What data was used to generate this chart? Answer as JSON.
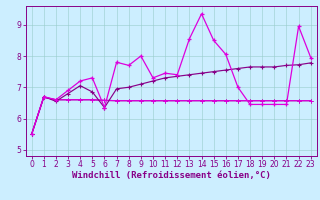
{
  "bg_color": "#cceeff",
  "line_color_bright": "#dd00dd",
  "line_color_dark": "#880088",
  "xlim": [
    -0.5,
    23.5
  ],
  "ylim": [
    4.8,
    9.6
  ],
  "yticks": [
    5,
    6,
    7,
    8,
    9
  ],
  "xticks": [
    0,
    1,
    2,
    3,
    4,
    5,
    6,
    7,
    8,
    9,
    10,
    11,
    12,
    13,
    14,
    15,
    16,
    17,
    18,
    19,
    20,
    21,
    22,
    23
  ],
  "xlabel": "Windchill (Refroidissement éolien,°C)",
  "series1_x": [
    0,
    1,
    2,
    3,
    4,
    5,
    6,
    7,
    8,
    9,
    10,
    11,
    12,
    13,
    14,
    15,
    16,
    17,
    18,
    19,
    20,
    21,
    22,
    23
  ],
  "series1_y": [
    5.5,
    6.7,
    6.6,
    6.9,
    7.2,
    7.3,
    6.35,
    7.8,
    7.7,
    8.0,
    7.3,
    7.45,
    7.4,
    8.55,
    9.35,
    8.5,
    8.05,
    7.0,
    6.45,
    6.45,
    6.45,
    6.45,
    8.95,
    7.95
  ],
  "series2_x": [
    0,
    1,
    2,
    3,
    4,
    5,
    6,
    7,
    8,
    9,
    10,
    11,
    12,
    13,
    14,
    15,
    16,
    17,
    18,
    19,
    20,
    21,
    22,
    23
  ],
  "series2_y": [
    5.5,
    6.7,
    6.55,
    6.8,
    7.05,
    6.85,
    6.35,
    6.95,
    7.0,
    7.1,
    7.2,
    7.3,
    7.35,
    7.4,
    7.45,
    7.5,
    7.55,
    7.6,
    7.65,
    7.65,
    7.65,
    7.7,
    7.72,
    7.78
  ],
  "series3_x": [
    0,
    1,
    2,
    3,
    4,
    5,
    6,
    7,
    8,
    9,
    10,
    11,
    12,
    13,
    14,
    15,
    16,
    17,
    18,
    19,
    20,
    21,
    22,
    23
  ],
  "series3_y": [
    5.5,
    6.68,
    6.6,
    6.6,
    6.6,
    6.6,
    6.58,
    6.57,
    6.57,
    6.57,
    6.57,
    6.57,
    6.57,
    6.57,
    6.57,
    6.57,
    6.57,
    6.57,
    6.57,
    6.57,
    6.57,
    6.57,
    6.57,
    6.57
  ],
  "series4_x": [
    0,
    1,
    2,
    3,
    4,
    5,
    6,
    7,
    8,
    9,
    10,
    11,
    12,
    13,
    14,
    15,
    16,
    17,
    18,
    19,
    20,
    21,
    22,
    23
  ],
  "series4_y": [
    5.5,
    6.68,
    6.6,
    6.6,
    6.6,
    6.6,
    6.58,
    6.57,
    6.57,
    6.57,
    6.57,
    6.57,
    6.57,
    6.57,
    6.57,
    6.57,
    6.57,
    6.57,
    6.57,
    6.57,
    6.57,
    6.57,
    6.57,
    6.57
  ],
  "grid_color": "#99cccc",
  "tick_fontsize": 5.5,
  "xlabel_fontsize": 6.5,
  "lw_main": 0.9,
  "lw_trend": 0.85,
  "marker_size": 3.5
}
